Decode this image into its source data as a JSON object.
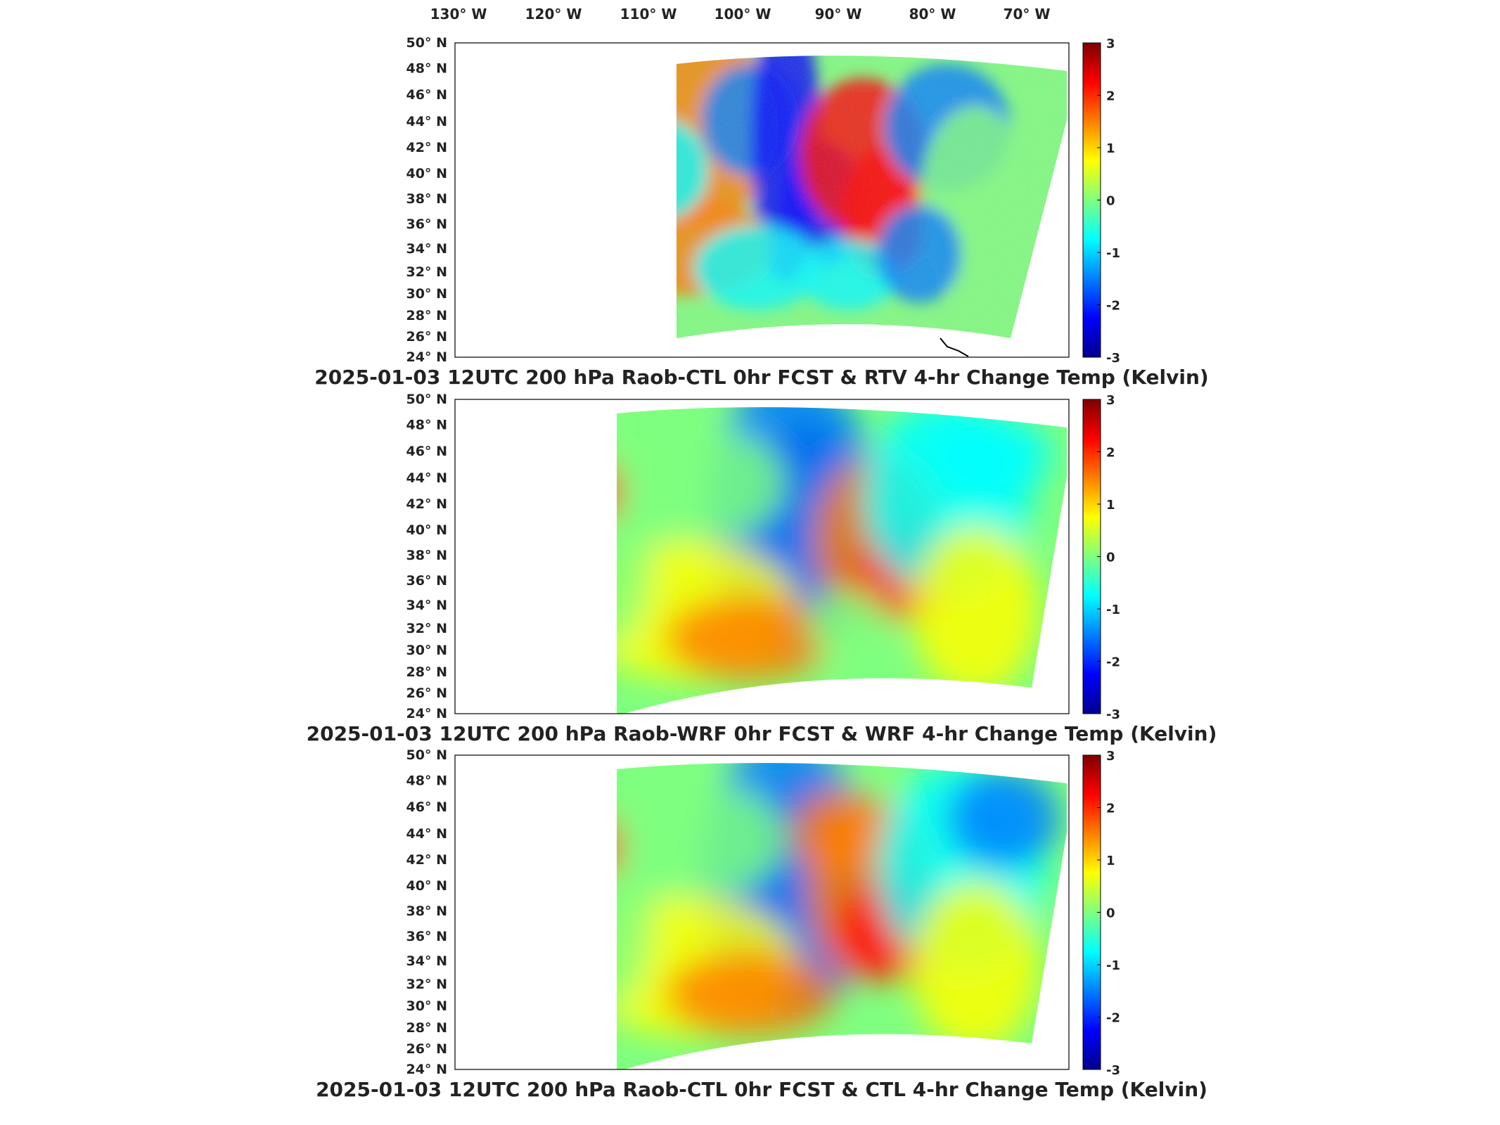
{
  "longitude_labels": [
    "130° W",
    "120° W",
    "110° W",
    "100° W",
    "90° W",
    "80° W",
    "70° W"
  ],
  "latitude_labels": [
    "50° N",
    "48° N",
    "46° N",
    "44° N",
    "42° N",
    "40° N",
    "38° N",
    "36° N",
    "34° N",
    "32° N",
    "30° N",
    "28° N",
    "26° N",
    "24° N"
  ],
  "colorbar_ticks": [
    "3",
    "2",
    "1",
    "0",
    "-1",
    "-2",
    "-3"
  ],
  "panels": [
    {
      "title": "2025-01-03 12UTC 200 hPa Raob-CTL 0hr FCST & RTV 4-hr Change Temp (Kelvin)"
    },
    {
      "title": "2025-01-03 12UTC 200 hPa Raob-WRF 0hr FCST & WRF 4-hr Change Temp (Kelvin)"
    },
    {
      "title": "2025-01-03 12UTC 200 hPa Raob-CTL 0hr FCST & CTL 4-hr Change Temp (Kelvin)"
    }
  ],
  "colormap": [
    "#00008f",
    "#0000ff",
    "#007fff",
    "#00ffff",
    "#7fff7f",
    "#ffff00",
    "#ff7f00",
    "#ff0000",
    "#7f0000"
  ]
}
